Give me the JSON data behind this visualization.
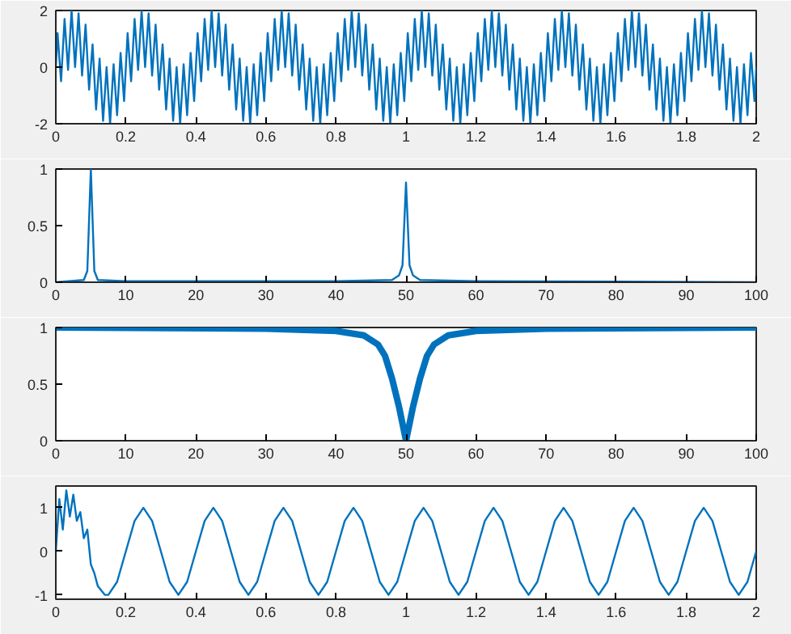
{
  "chart_data": [
    {
      "type": "line",
      "xlim": [
        0,
        2
      ],
      "ylim": [
        -2,
        2
      ],
      "xticks": [
        0,
        0.2,
        0.4,
        0.6,
        0.8,
        1,
        1.2,
        1.4,
        1.6,
        1.8,
        2
      ],
      "yticks": [
        -2,
        0,
        2
      ],
      "grid": false,
      "series": [
        {
          "color": "#0072bd",
          "x": [
            0,
            0.005,
            0.015,
            0.025,
            0.035,
            0.045,
            0.055,
            0.065,
            0.075,
            0.085,
            0.095,
            0.105,
            0.115,
            0.125,
            0.135,
            0.145,
            0.155,
            0.165,
            0.175,
            0.185,
            0.195,
            0.205,
            0.215,
            0.225,
            0.235,
            0.245,
            0.255,
            0.265,
            0.275,
            0.285,
            0.295,
            0.305,
            0.315,
            0.325,
            0.335,
            0.345,
            0.355,
            0.365,
            0.375,
            0.385,
            0.395,
            0.405,
            0.415,
            0.425,
            0.435,
            0.445,
            0.455,
            0.465,
            0.475,
            0.485,
            0.495,
            0.505,
            0.515,
            0.525,
            0.535,
            0.545,
            0.555,
            0.565,
            0.575,
            0.585,
            0.595,
            0.605,
            0.615,
            0.625,
            0.635,
            0.645,
            0.655,
            0.665,
            0.675,
            0.685,
            0.695,
            0.705,
            0.715,
            0.725,
            0.735,
            0.745,
            0.755,
            0.765,
            0.775,
            0.785,
            0.795,
            0.805,
            0.815,
            0.825,
            0.835,
            0.845,
            0.855,
            0.865,
            0.875,
            0.885,
            0.895,
            0.905,
            0.915,
            0.925,
            0.935,
            0.945,
            0.955,
            0.965,
            0.975,
            0.985,
            0.995,
            1.005,
            1.015,
            1.025,
            1.035,
            1.045,
            1.055,
            1.065,
            1.075,
            1.085,
            1.095,
            1.105,
            1.115,
            1.125,
            1.135,
            1.145,
            1.155,
            1.165,
            1.175,
            1.185,
            1.195,
            1.205,
            1.215,
            1.225,
            1.235,
            1.245,
            1.255,
            1.265,
            1.275,
            1.285,
            1.295,
            1.305,
            1.315,
            1.325,
            1.335,
            1.345,
            1.355,
            1.365,
            1.375,
            1.385,
            1.395,
            1.405,
            1.415,
            1.425,
            1.435,
            1.445,
            1.455,
            1.465,
            1.475,
            1.485,
            1.495,
            1.505,
            1.515,
            1.525,
            1.535,
            1.545,
            1.555,
            1.565,
            1.575,
            1.585,
            1.595,
            1.605,
            1.615,
            1.625,
            1.635,
            1.645,
            1.655,
            1.665,
            1.675,
            1.685,
            1.695,
            1.705,
            1.715,
            1.725,
            1.735,
            1.745,
            1.755,
            1.765,
            1.775,
            1.785,
            1.795,
            1.805,
            1.815,
            1.825,
            1.835,
            1.845,
            1.855,
            1.865,
            1.875,
            1.885,
            1.895,
            1.905,
            1.915,
            1.925,
            1.935,
            1.945,
            1.955,
            1.965,
            1.975,
            1.985,
            1.995,
            2
          ],
          "values": [
            0,
            1.2,
            -0.5,
            1.7,
            -0.1,
            2,
            0,
            1.9,
            -0.3,
            1.5,
            -0.8,
            0.8,
            -1.5,
            0.3,
            -1.9,
            0,
            -2,
            0.1,
            -1.7,
            0.5,
            -1.2,
            1.2,
            -0.5,
            1.7,
            -0.1,
            2,
            0,
            1.9,
            -0.3,
            1.5,
            -0.8,
            0.8,
            -1.5,
            0.3,
            -1.9,
            0,
            -2,
            0.1,
            -1.7,
            0.5,
            -1.2,
            1.2,
            -0.5,
            1.7,
            -0.1,
            2,
            0,
            1.9,
            -0.3,
            1.5,
            -0.8,
            0.8,
            -1.5,
            0.3,
            -1.9,
            0,
            -2,
            0.1,
            -1.7,
            0.5,
            -1.2,
            1.2,
            -0.5,
            1.7,
            -0.1,
            2,
            0,
            1.9,
            -0.3,
            1.5,
            -0.8,
            0.8,
            -1.5,
            0.3,
            -1.9,
            0,
            -2,
            0.1,
            -1.7,
            0.5,
            -1.2,
            1.2,
            -0.5,
            1.7,
            -0.1,
            2,
            0,
            1.9,
            -0.3,
            1.5,
            -0.8,
            0.8,
            -1.5,
            0.3,
            -1.9,
            0,
            -2,
            0.1,
            -1.7,
            0.5,
            -1.2,
            1.2,
            -0.5,
            1.7,
            -0.1,
            2,
            0,
            1.9,
            -0.3,
            1.5,
            -0.8,
            0.8,
            -1.5,
            0.3,
            -1.9,
            0,
            -2,
            0.1,
            -1.7,
            0.5,
            -1.2,
            1.2,
            -0.5,
            1.7,
            -0.1,
            2,
            0,
            1.9,
            -0.3,
            1.5,
            -0.8,
            0.8,
            -1.5,
            0.3,
            -1.9,
            0,
            -2,
            0.1,
            -1.7,
            0.5,
            -1.2,
            1.2,
            -0.5,
            1.7,
            -0.1,
            2,
            0,
            1.9,
            -0.3,
            1.5,
            -0.8,
            0.8,
            -1.5,
            0.3,
            -1.9,
            0,
            -2,
            0.1,
            -1.7,
            0.5,
            -1.2,
            1.2,
            -0.5,
            1.7,
            -0.1,
            2,
            0,
            1.9,
            -0.3,
            1.5,
            -0.8,
            0.8,
            -1.5,
            0.3,
            -1.9,
            0,
            -2,
            0.1,
            -1.7,
            0.5,
            -1.2,
            1.2,
            -0.5,
            1.7,
            -0.1,
            2,
            0,
            1.9,
            -0.3,
            1.5,
            -0.8,
            0.8,
            -1.5,
            0.3,
            -1.9,
            0,
            -2,
            0.1,
            -1.7,
            0.5,
            -1.2,
            0
          ]
        }
      ]
    },
    {
      "type": "line",
      "xlim": [
        0,
        100
      ],
      "ylim": [
        0,
        1
      ],
      "xticks": [
        0,
        10,
        20,
        30,
        40,
        50,
        60,
        70,
        80,
        90,
        100
      ],
      "yticks": [
        0,
        0.5,
        1
      ],
      "grid": false,
      "series": [
        {
          "color": "#0072bd",
          "x": [
            0,
            4,
            4.5,
            5,
            5.5,
            6,
            10,
            40,
            48,
            49,
            49.5,
            50,
            50.5,
            51,
            52,
            60,
            100
          ],
          "values": [
            0,
            0.02,
            0.1,
            1,
            0.1,
            0.02,
            0.01,
            0.01,
            0.02,
            0.06,
            0.15,
            0.88,
            0.15,
            0.06,
            0.02,
            0.01,
            0
          ]
        }
      ]
    },
    {
      "type": "line",
      "xlim": [
        0,
        100
      ],
      "ylim": [
        0,
        1
      ],
      "xticks": [
        0,
        10,
        20,
        30,
        40,
        50,
        60,
        70,
        80,
        90,
        100
      ],
      "yticks": [
        0,
        0.5,
        1
      ],
      "grid": false,
      "series": [
        {
          "color": "#0072bd",
          "x": [
            0,
            30,
            40,
            44,
            46,
            47,
            48,
            49,
            50,
            51,
            52,
            53,
            54,
            56,
            60,
            70,
            100
          ],
          "values": [
            1,
            0.99,
            0.97,
            0.93,
            0.85,
            0.75,
            0.55,
            0.3,
            0,
            0.3,
            0.55,
            0.75,
            0.85,
            0.93,
            0.97,
            0.99,
            1
          ]
        }
      ]
    },
    {
      "type": "line",
      "xlim": [
        0,
        2
      ],
      "ylim": [
        -1.1,
        1.5
      ],
      "xticks": [
        0,
        0.2,
        0.4,
        0.6,
        0.8,
        1,
        1.2,
        1.4,
        1.6,
        1.8,
        2
      ],
      "yticks": [
        -1,
        0,
        1
      ],
      "grid": false,
      "series": [
        {
          "color": "#0072bd",
          "x": [
            0,
            0.01,
            0.02,
            0.03,
            0.04,
            0.05,
            0.06,
            0.07,
            0.08,
            0.09,
            0.1,
            0.11,
            0.12,
            0.13,
            0.14,
            0.15,
            0.175,
            0.2,
            0.225,
            0.25,
            0.275,
            0.3,
            0.325,
            0.35,
            0.375,
            0.4,
            0.425,
            0.45,
            0.475,
            0.5,
            0.525,
            0.55,
            0.575,
            0.6,
            0.625,
            0.65,
            0.675,
            0.7,
            0.725,
            0.75,
            0.775,
            0.8,
            0.825,
            0.85,
            0.875,
            0.9,
            0.925,
            0.95,
            0.975,
            1,
            1.025,
            1.05,
            1.075,
            1.1,
            1.125,
            1.15,
            1.175,
            1.2,
            1.225,
            1.25,
            1.275,
            1.3,
            1.325,
            1.35,
            1.375,
            1.4,
            1.425,
            1.45,
            1.475,
            1.5,
            1.525,
            1.55,
            1.575,
            1.6,
            1.625,
            1.65,
            1.675,
            1.7,
            1.725,
            1.75,
            1.775,
            1.8,
            1.825,
            1.85,
            1.875,
            1.9,
            1.925,
            1.95,
            1.975,
            2
          ],
          "values": [
            0,
            1.2,
            0.5,
            1.4,
            0.8,
            1.3,
            0.7,
            0.9,
            0.3,
            0.5,
            -0.3,
            -0.5,
            -0.8,
            -0.9,
            -1,
            -1,
            -0.7,
            0,
            0.7,
            1,
            0.7,
            0,
            -0.7,
            -1,
            -0.7,
            0,
            0.7,
            1,
            0.7,
            0,
            -0.7,
            -1,
            -0.7,
            0,
            0.7,
            1,
            0.7,
            0,
            -0.7,
            -1,
            -0.7,
            0,
            0.7,
            1,
            0.7,
            0,
            -0.7,
            -1,
            -0.7,
            0,
            0.7,
            1,
            0.7,
            0,
            -0.7,
            -1,
            -0.7,
            0,
            0.7,
            1,
            0.7,
            0,
            -0.7,
            -1,
            -0.7,
            0,
            0.7,
            1,
            0.7,
            0,
            -0.7,
            -1,
            -0.7,
            0,
            0.7,
            1,
            0.7,
            0,
            -0.7,
            -1,
            -0.7,
            0,
            0.7,
            1,
            0.7,
            0,
            -0.7,
            -1,
            -0.7,
            0
          ]
        }
      ]
    }
  ]
}
